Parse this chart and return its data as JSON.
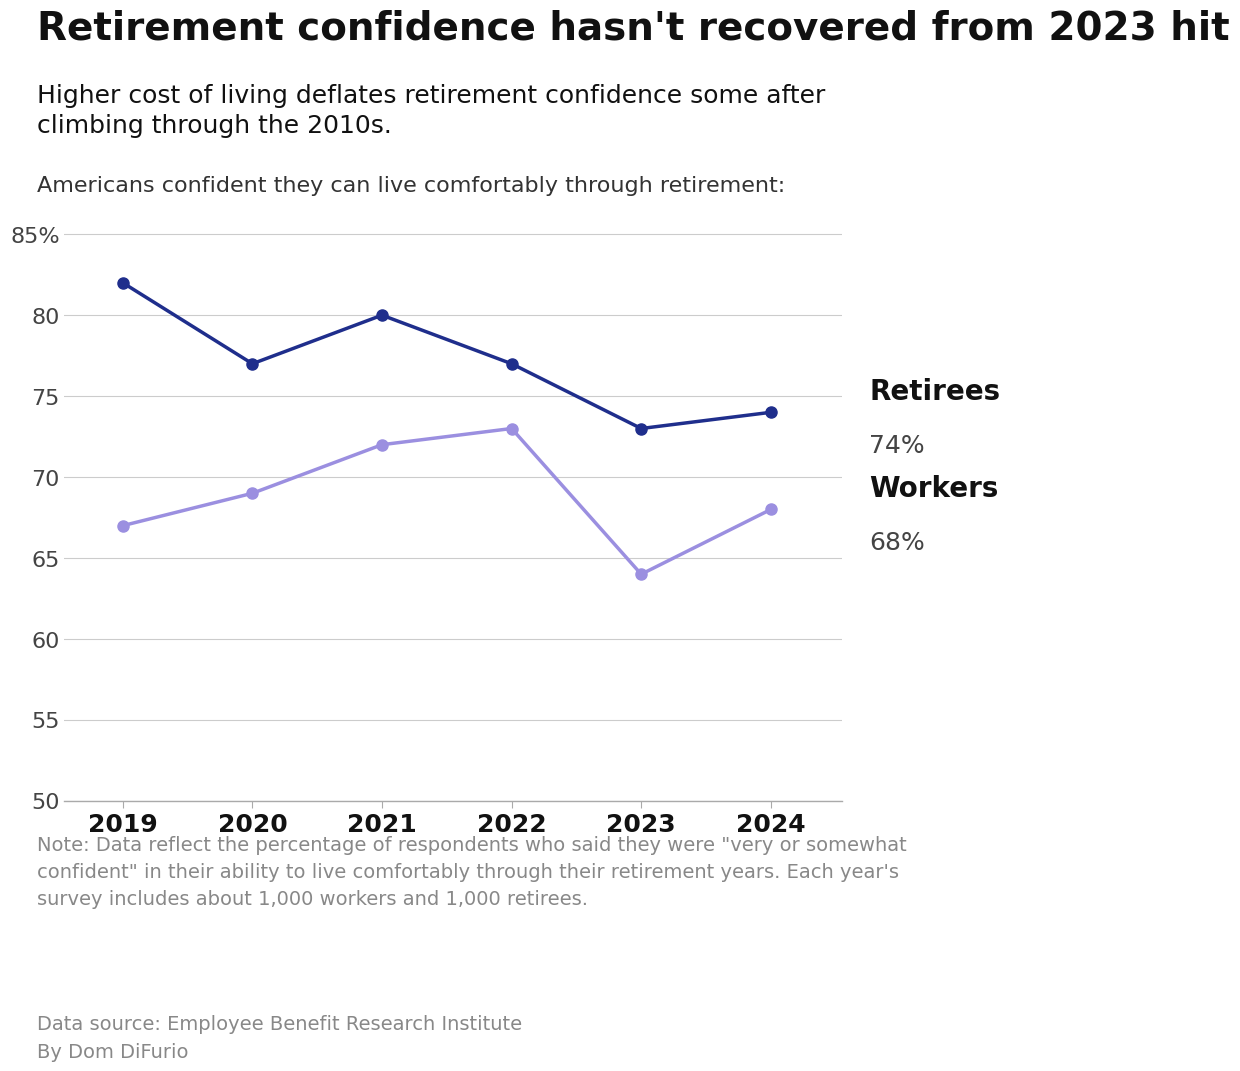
{
  "title": "Retirement confidence hasn't recovered from 2023 hit",
  "subtitle": "Higher cost of living deflates retirement confidence some after\nclimbing through the 2010s.",
  "chart_label": "Americans confident they can live comfortably through retirement:",
  "years": [
    2019,
    2020,
    2021,
    2022,
    2023,
    2024
  ],
  "retirees": [
    82,
    77,
    80,
    77,
    73,
    74
  ],
  "workers": [
    67,
    69,
    72,
    73,
    64,
    68
  ],
  "retirees_color": "#1f2e8c",
  "workers_color": "#9b8fe0",
  "ylim": [
    50,
    87
  ],
  "yticks": [
    50,
    55,
    60,
    65,
    70,
    75,
    80,
    85
  ],
  "note": "Note: Data reflect the percentage of respondents who said they were \"very or somewhat\nconfident\" in their ability to live comfortably through their retirement years. Each year's\nsurvey includes about 1,000 workers and 1,000 retirees.",
  "source": "Data source: Employee Benefit Research Institute\nBy Dom DiFurio",
  "retirees_label": "Retirees",
  "retirees_pct": "74%",
  "workers_label": "Workers",
  "workers_pct": "68%",
  "background_color": "#ffffff",
  "title_fontsize": 28,
  "subtitle_fontsize": 18,
  "chart_label_fontsize": 16,
  "axis_fontsize": 16,
  "legend_label_fontsize": 20,
  "legend_pct_fontsize": 18,
  "note_fontsize": 14,
  "marker_size": 8
}
